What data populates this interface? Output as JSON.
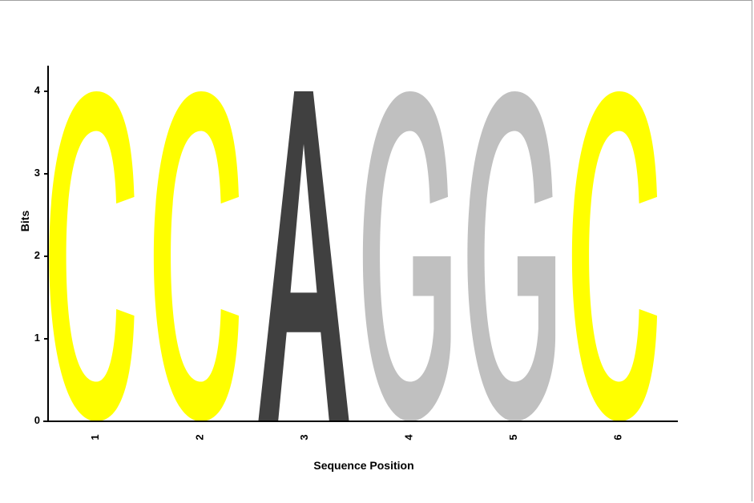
{
  "chart_data": {
    "type": "sequence-logo",
    "xlabel": "Sequence Position",
    "ylabel": "Bits",
    "ylim": [
      0,
      4
    ],
    "yticks": [
      "0",
      "1",
      "2",
      "3",
      "4"
    ],
    "positions": [
      {
        "label": "1",
        "letter": "C",
        "bits": 4.0
      },
      {
        "label": "2",
        "letter": "C",
        "bits": 4.0
      },
      {
        "label": "3",
        "letter": "A",
        "bits": 4.0
      },
      {
        "label": "4",
        "letter": "G",
        "bits": 4.0
      },
      {
        "label": "5",
        "letter": "G",
        "bits": 4.0
      },
      {
        "label": "6",
        "letter": "C",
        "bits": 4.0
      }
    ],
    "colors": {
      "C": "#ffff00",
      "A": "#404040",
      "G": "#c0c0c0",
      "T": "#808080",
      "axis": "#000000"
    },
    "grid": false,
    "legend": "none"
  }
}
